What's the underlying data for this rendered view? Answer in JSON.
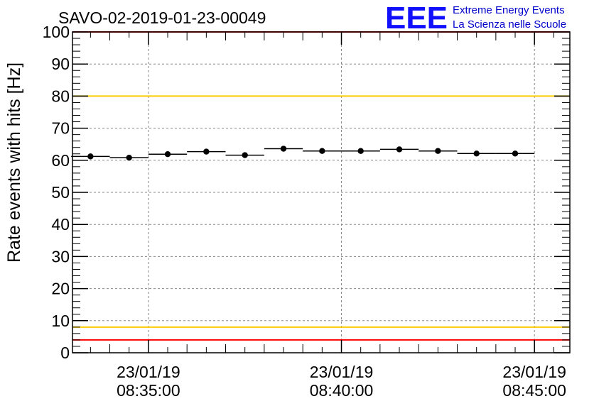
{
  "chart_data": {
    "type": "scatter",
    "title": "SAVO-02-2019-01-23-00049",
    "ylabel": "Rate events with hits [Hz]",
    "xlabel": "",
    "ylim": [
      0,
      100
    ],
    "yticks": [
      0,
      10,
      20,
      30,
      40,
      50,
      60,
      70,
      80,
      90,
      100
    ],
    "grid": true,
    "x_unit": "minutes",
    "xlim": [
      "08:33:02",
      "08:45:55"
    ],
    "xticks": [
      {
        "x": "08:35:00",
        "date": "23/01/19",
        "time": "08:35:00"
      },
      {
        "x": "08:40:00",
        "date": "23/01/19",
        "time": "08:40:00"
      },
      {
        "x": "08:45:00",
        "date": "23/01/19",
        "time": "08:45:00"
      }
    ],
    "series": [
      {
        "points": [
          {
            "x": "08:33:30",
            "y": 61.2,
            "err": 0.5,
            "halfwidth_s": 30
          },
          {
            "x": "08:34:30",
            "y": 60.8,
            "err": 0.5,
            "halfwidth_s": 30
          },
          {
            "x": "08:35:30",
            "y": 61.9,
            "err": 0.5,
            "halfwidth_s": 30
          },
          {
            "x": "08:36:30",
            "y": 62.7,
            "err": 0.5,
            "halfwidth_s": 30
          },
          {
            "x": "08:37:30",
            "y": 61.6,
            "err": 0.5,
            "halfwidth_s": 30
          },
          {
            "x": "08:38:30",
            "y": 63.6,
            "err": 0.5,
            "halfwidth_s": 30
          },
          {
            "x": "08:39:30",
            "y": 62.9,
            "err": 0.5,
            "halfwidth_s": 30
          },
          {
            "x": "08:40:30",
            "y": 62.9,
            "err": 0.5,
            "halfwidth_s": 30
          },
          {
            "x": "08:41:30",
            "y": 63.4,
            "err": 0.5,
            "halfwidth_s": 30
          },
          {
            "x": "08:42:30",
            "y": 62.9,
            "err": 0.5,
            "halfwidth_s": 30
          },
          {
            "x": "08:43:30",
            "y": 62.1,
            "err": 0.5,
            "halfwidth_s": 30
          },
          {
            "x": "08:44:30",
            "y": 62.1,
            "err": 0.5,
            "halfwidth_s": 30
          }
        ]
      }
    ],
    "reference_lines": [
      {
        "y": 100,
        "color": "#ff0000"
      },
      {
        "y": 80,
        "color": "#ffcc00"
      },
      {
        "y": 8,
        "color": "#ffcc00"
      },
      {
        "y": 4,
        "color": "#ff0000"
      }
    ]
  },
  "logo": {
    "mark": "EEE",
    "line1": "Extreme Energy Events",
    "line2": "La Scienza nelle Scuole",
    "color": "#1010ff"
  }
}
